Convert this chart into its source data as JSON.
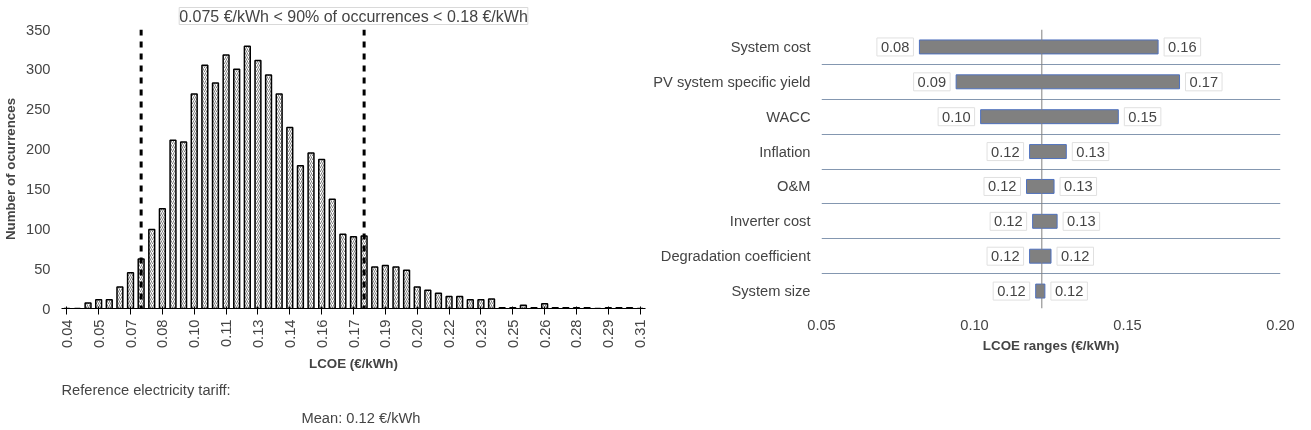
{
  "chart_data": [
    {
      "type": "bar",
      "xlabel": "LCOE (€/kWh)",
      "ylabel": "Number of ocurrences",
      "color": "#000000",
      "x": [
        0.04,
        0.045,
        0.05,
        0.055,
        0.06,
        0.065,
        0.07,
        0.075,
        0.08,
        0.085,
        0.09,
        0.095,
        0.1,
        0.105,
        0.11,
        0.115,
        0.12,
        0.125,
        0.13,
        0.135,
        0.14,
        0.145,
        0.15,
        0.155,
        0.16,
        0.165,
        0.17,
        0.175,
        0.18,
        0.185,
        0.19,
        0.195,
        0.2,
        0.205,
        0.21,
        0.215,
        0.22,
        0.225,
        0.23,
        0.235,
        0.24,
        0.245,
        0.25,
        0.255,
        0.26,
        0.265,
        0.27,
        0.275,
        0.28,
        0.285,
        0.29,
        0.295,
        0.3,
        0.305,
        0.31
      ],
      "values": [
        0,
        0,
        7,
        11,
        11,
        27,
        45,
        62,
        99,
        125,
        211,
        209,
        269,
        305,
        283,
        318,
        300,
        329,
        311,
        293,
        269,
        227,
        179,
        195,
        187,
        137,
        93,
        90,
        91,
        52,
        54,
        52,
        48,
        27,
        23,
        19,
        15,
        15,
        11,
        11,
        12,
        1,
        1,
        4,
        1,
        6,
        1,
        1,
        1,
        1,
        0,
        1,
        1,
        1,
        0
      ],
      "xlim": [
        0.0375,
        0.3125
      ],
      "xticks": [
        {
          "value": 0.04,
          "label": "0.04"
        },
        {
          "value": 0.055,
          "label": "0.05"
        },
        {
          "value": 0.07,
          "label": "0.07"
        },
        {
          "value": 0.085,
          "label": "0.08"
        },
        {
          "value": 0.1,
          "label": "0.10"
        },
        {
          "value": 0.115,
          "label": "0.11"
        },
        {
          "value": 0.13,
          "label": "0.13"
        },
        {
          "value": 0.145,
          "label": "0.14"
        },
        {
          "value": 0.16,
          "label": "0.16"
        },
        {
          "value": 0.175,
          "label": "0.17"
        },
        {
          "value": 0.19,
          "label": "0.19"
        },
        {
          "value": 0.205,
          "label": "0.20"
        },
        {
          "value": 0.22,
          "label": "0.22"
        },
        {
          "value": 0.235,
          "label": "0.23"
        },
        {
          "value": 0.25,
          "label": "0.25"
        },
        {
          "value": 0.265,
          "label": "0.26"
        },
        {
          "value": 0.28,
          "label": "0.28"
        },
        {
          "value": 0.295,
          "label": "0.29"
        },
        {
          "value": 0.31,
          "label": "0.31"
        }
      ],
      "ylim": [
        0,
        350
      ],
      "yticks": [
        0,
        50,
        100,
        150,
        200,
        250,
        300,
        350
      ],
      "grid": false,
      "ref_lines": [
        {
          "axis": "x",
          "value": 0.075,
          "color": "#000000",
          "line_style": "dashed"
        },
        {
          "axis": "x",
          "value": 0.18,
          "color": "#000000",
          "line_style": "dashed"
        }
      ],
      "annotations": [
        "0.075 €/kWh < 90% of occurrences < 0.18 €/kWh",
        "Reference  electricity tariff:",
        "Mean: 0.12 €/kWh"
      ]
    },
    {
      "type": "bar",
      "orientation": "horizontal",
      "xlabel": "LCOE ranges (€/kWh)",
      "color": "#808080",
      "categories": [
        "System cost",
        "PV system specific yield",
        "WACC",
        "Inflation",
        "O&M",
        "Inverter cost",
        "Degradation coefficient",
        "System size"
      ],
      "base": [
        0.082,
        0.094,
        0.102,
        0.118,
        0.117,
        0.119,
        0.118,
        0.12
      ],
      "values": [
        0.078,
        0.073,
        0.045,
        0.012,
        0.009,
        0.008,
        0.007,
        0.003
      ],
      "xlim": [
        0.05,
        0.2
      ],
      "xticks": [
        {
          "value": 0.05,
          "label": "0.05"
        },
        {
          "value": 0.1,
          "label": "0.10"
        },
        {
          "value": 0.15,
          "label": "0.15"
        },
        {
          "value": 0.2,
          "label": "0.20"
        }
      ],
      "grid": "y",
      "ref_lines": [
        {
          "axis": "x",
          "value": 0.122,
          "color": "#808080"
        }
      ],
      "annotations": [
        {
          "text": "0.08",
          "x": 0.082,
          "y": "System cost"
        },
        {
          "text": "0.16",
          "x": 0.16,
          "y": "System cost"
        },
        {
          "text": "0.09",
          "x": 0.094,
          "y": "PV system specific yield"
        },
        {
          "text": "0.17",
          "x": 0.167,
          "y": "PV system specific yield"
        },
        {
          "text": "0.10",
          "x": 0.102,
          "y": "WACC"
        },
        {
          "text": "0.15",
          "x": 0.147,
          "y": "WACC"
        },
        {
          "text": "0.12",
          "x": 0.118,
          "y": "Inflation"
        },
        {
          "text": "0.13",
          "x": 0.13,
          "y": "Inflation"
        },
        {
          "text": "0.12",
          "x": 0.117,
          "y": "O&M"
        },
        {
          "text": "0.13",
          "x": 0.126,
          "y": "O&M"
        },
        {
          "text": "0.12",
          "x": 0.119,
          "y": "Inverter cost"
        },
        {
          "text": "0.13",
          "x": 0.127,
          "y": "Inverter cost"
        },
        {
          "text": "0.12",
          "x": 0.118,
          "y": "Degradation coefficient"
        },
        {
          "text": "0.12",
          "x": 0.125,
          "y": "Degradation coefficient"
        },
        {
          "text": "0.12",
          "x": 0.12,
          "y": "System size"
        },
        {
          "text": "0.12",
          "x": 0.123,
          "y": "System size"
        }
      ]
    }
  ]
}
